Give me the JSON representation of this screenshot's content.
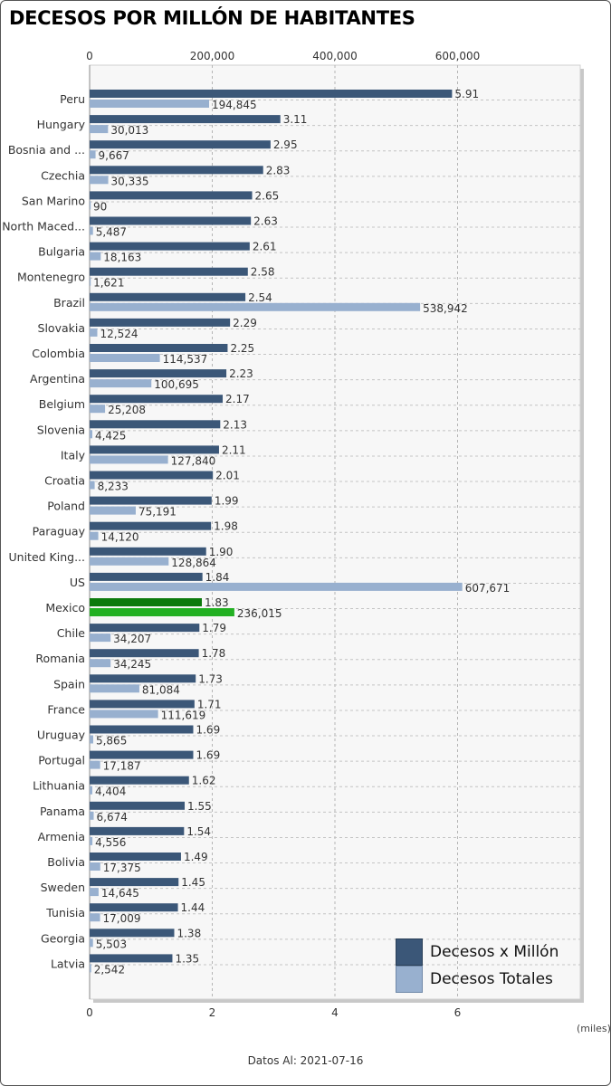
{
  "title": "DECESOS POR MILLÓN DE HABITANTES",
  "units_label": "(miles)",
  "footer": "Datos Al: 2021-07-16",
  "colors": {
    "per_million": "#3b5778",
    "total": "#98b0cf",
    "highlight_per_million": "#0d7a0d",
    "highlight_total": "#22b022",
    "plot_bg": "#f7f7f7"
  },
  "legend": [
    {
      "label": "Decesos x Millón",
      "color": "#3b5778"
    },
    {
      "label": "Decesos Totales",
      "color": "#98b0cf"
    }
  ],
  "chart_data": {
    "type": "bar",
    "orientation": "horizontal",
    "title": "DECESOS POR MILLÓN DE HABITANTES",
    "highlight": "Mexico",
    "categories": [
      "Peru",
      "Hungary",
      "Bosnia and ...",
      "Czechia",
      "San Marino",
      "North Maced...",
      "Bulgaria",
      "Montenegro",
      "Brazil",
      "Slovakia",
      "Colombia",
      "Argentina",
      "Belgium",
      "Slovenia",
      "Italy",
      "Croatia",
      "Poland",
      "Paraguay",
      "United King...",
      "US",
      "Mexico",
      "Chile",
      "Romania",
      "Spain",
      "France",
      "Uruguay",
      "Portugal",
      "Lithuania",
      "Panama",
      "Armenia",
      "Bolivia",
      "Sweden",
      "Tunisia",
      "Georgia",
      "Latvia"
    ],
    "series": [
      {
        "name": "Decesos x Millón",
        "axis": "bottom",
        "values": [
          5.91,
          3.11,
          2.95,
          2.83,
          2.65,
          2.63,
          2.61,
          2.58,
          2.54,
          2.29,
          2.25,
          2.23,
          2.17,
          2.13,
          2.11,
          2.01,
          1.99,
          1.98,
          1.9,
          1.84,
          1.83,
          1.79,
          1.78,
          1.73,
          1.71,
          1.69,
          1.69,
          1.62,
          1.55,
          1.54,
          1.49,
          1.45,
          1.44,
          1.38,
          1.35
        ],
        "labels": [
          "5.91",
          "3.11",
          "2.95",
          "2.83",
          "2.65",
          "2.63",
          "2.61",
          "2.58",
          "2.54",
          "2.29",
          "2.25",
          "2.23",
          "2.17",
          "2.13",
          "2.11",
          "2.01",
          "1.99",
          "1.98",
          "1.90",
          "1.84",
          "1.83",
          "1.79",
          "1.78",
          "1.73",
          "1.71",
          "1.69",
          "1.69",
          "1.62",
          "1.55",
          "1.54",
          "1.49",
          "1.45",
          "1.44",
          "1.38",
          "1.35"
        ]
      },
      {
        "name": "Decesos Totales",
        "axis": "top",
        "values": [
          194845,
          30013,
          9667,
          30335,
          90,
          5487,
          18163,
          1621,
          538942,
          12524,
          114537,
          100695,
          25208,
          4425,
          127840,
          8233,
          75191,
          14120,
          128864,
          607671,
          236015,
          34207,
          34245,
          81084,
          111619,
          5865,
          17187,
          4404,
          6674,
          4556,
          17375,
          14645,
          17009,
          5503,
          2542
        ],
        "labels": [
          "194,845",
          "30,013",
          "9,667",
          "30,335",
          "90",
          "5,487",
          "18,163",
          "1,621",
          "538,942",
          "12,524",
          "114,537",
          "100,695",
          "25,208",
          "4,425",
          "127,840",
          "8,233",
          "75,191",
          "14,120",
          "128,864",
          "607,671",
          "236,015",
          "34,207",
          "34,245",
          "81,084",
          "111,619",
          "5,865",
          "17,187",
          "4,404",
          "6,674",
          "4,556",
          "17,375",
          "14,645",
          "17,009",
          "5,503",
          "2,542"
        ]
      }
    ],
    "top_axis": {
      "range": [
        0,
        800000
      ],
      "ticks": [
        0,
        200000,
        400000,
        600000
      ],
      "tick_labels": [
        "0",
        "200,000",
        "400,000",
        "600,000"
      ]
    },
    "bottom_axis": {
      "range": [
        0,
        8
      ],
      "ticks": [
        0,
        2,
        4,
        6
      ],
      "tick_labels": [
        "0",
        "2",
        "4",
        "6"
      ]
    },
    "grid": true,
    "legend_position": "bottom-right"
  }
}
